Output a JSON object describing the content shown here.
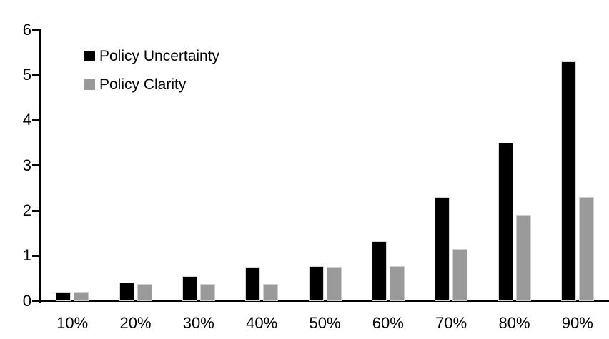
{
  "chart_data": {
    "type": "bar",
    "categories": [
      "10%",
      "20%",
      "30%",
      "40%",
      "50%",
      "60%",
      "70%",
      "80%",
      "90%"
    ],
    "series": [
      {
        "name": "Policy Uncertainty",
        "color": "#000000",
        "values": [
          0.2,
          0.4,
          0.55,
          0.75,
          0.77,
          1.32,
          2.3,
          3.5,
          5.3
        ]
      },
      {
        "name": "Policy Clarity",
        "color": "#9a9a9a",
        "values": [
          0.2,
          0.38,
          0.38,
          0.38,
          0.75,
          0.77,
          1.15,
          1.9,
          2.3
        ]
      }
    ],
    "title": "",
    "xlabel": "",
    "ylabel": "",
    "ylim": [
      0,
      6
    ],
    "yticks": [
      "0",
      "1",
      "2",
      "3",
      "4",
      "5",
      "6"
    ],
    "grid": false,
    "legend_position": "top-left-inside"
  },
  "colors": {
    "background": "#ffffff",
    "axis": "#000000",
    "series_uncertainty": "#000000",
    "series_clarity": "#9a9a9a"
  }
}
